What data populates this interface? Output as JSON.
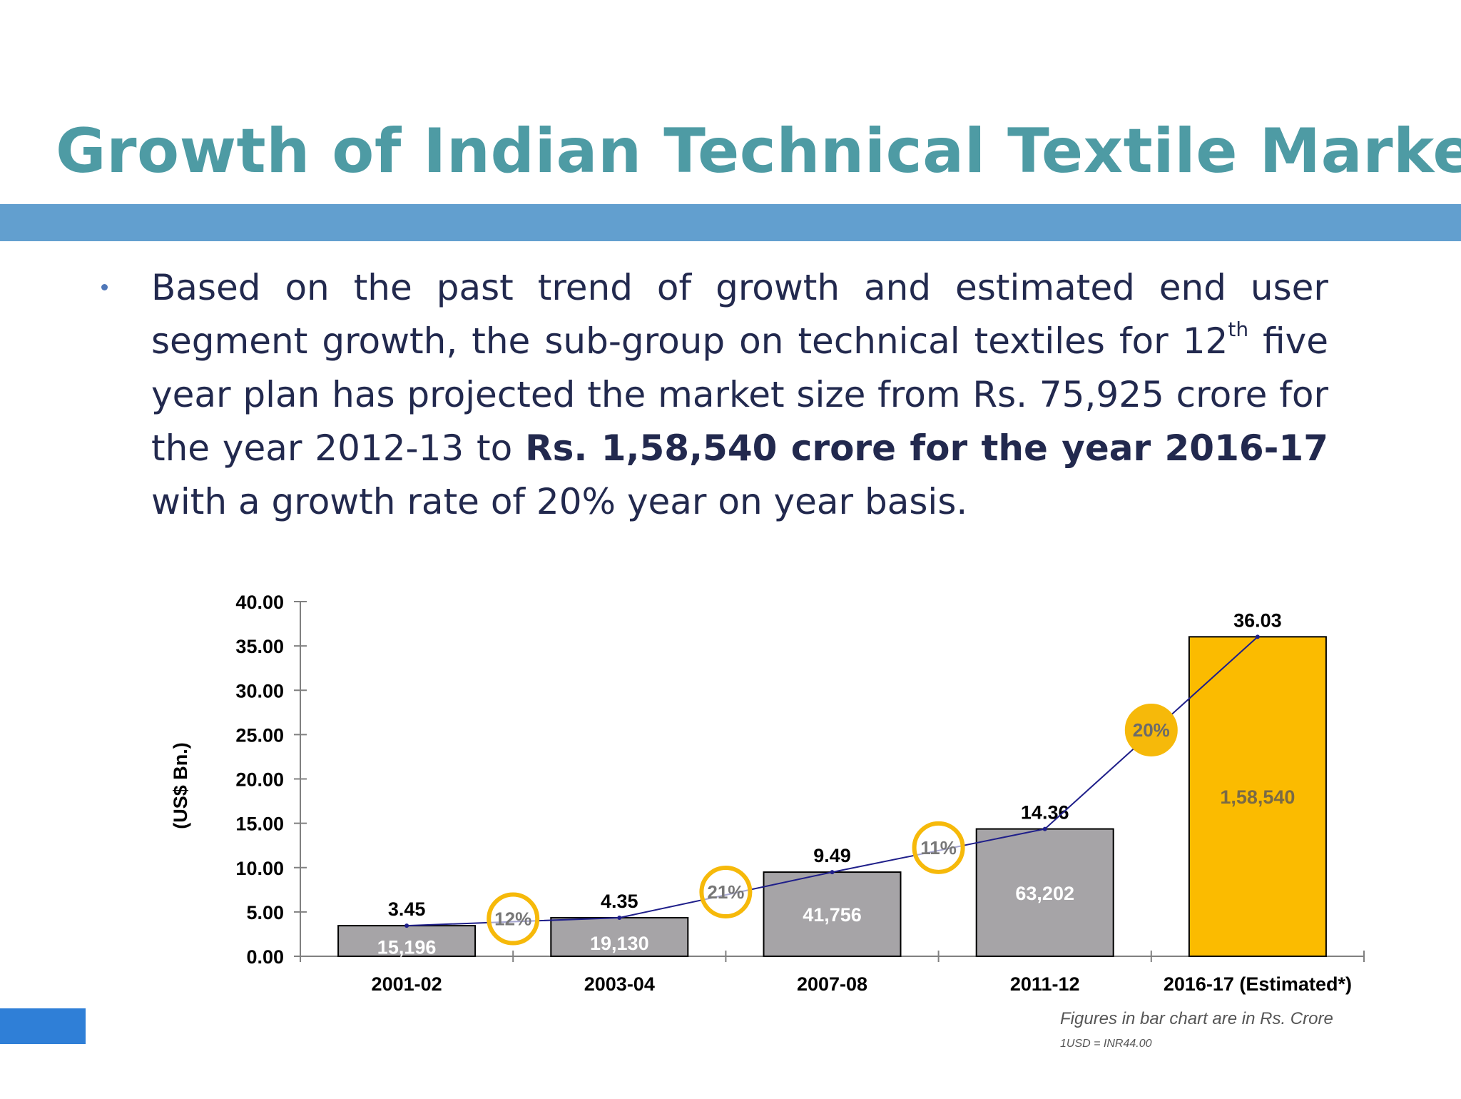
{
  "slide": {
    "title": "Growth of Indian Technical Textile Market",
    "bullet": {
      "text_1": "Based on the past trend of growth and estimated end user segment growth, the sub-group on technical textiles for 12",
      "superscript": "th",
      "text_2": " five year plan has projected the market size from Rs. 75,925 crore for the year 2012-13 to ",
      "bold_text": "Rs. 1,58,540 crore for the year 2016-17",
      "text_3": " with a growth rate of 20% year on year basis."
    },
    "footnote_1": "Figures in bar chart  are in Rs. Crore",
    "footnote_2": "1USD = INR44.00"
  },
  "colors": {
    "title": "#4e9ba4",
    "band": "#629fcf",
    "text": "#22294e",
    "bar_grey": "#a6a4a7",
    "bar_highlight": "#fbbb00",
    "circle": "#f6b90a",
    "line": "#1f1f8a",
    "corner_block": "#2f7fd7"
  },
  "chart_data": {
    "type": "bar",
    "categories": [
      "2001-02",
      "2003-04",
      "2007-08",
      "2011-12",
      "2016-17  (Estimated*)"
    ],
    "values": [
      3.45,
      4.35,
      9.49,
      14.36,
      36.03
    ],
    "value_labels": [
      "3.45",
      "4.35",
      "9.49",
      "14.36",
      "36.03"
    ],
    "inner_labels": [
      "15,196",
      "19,130",
      "41,756",
      "63,202",
      "1,58,540"
    ],
    "highlight_index": 4,
    "growth_rates": [
      "12%",
      "21%",
      "11%",
      "20%"
    ],
    "line_overlay": true,
    "ylabel": "(US$ Bn.)",
    "xlabel": "",
    "ylim": [
      0,
      40
    ],
    "yticks": [
      "0.00",
      "5.00",
      "10.00",
      "15.00",
      "20.00",
      "25.00",
      "30.00",
      "35.00",
      "40.00"
    ],
    "grid": false
  }
}
